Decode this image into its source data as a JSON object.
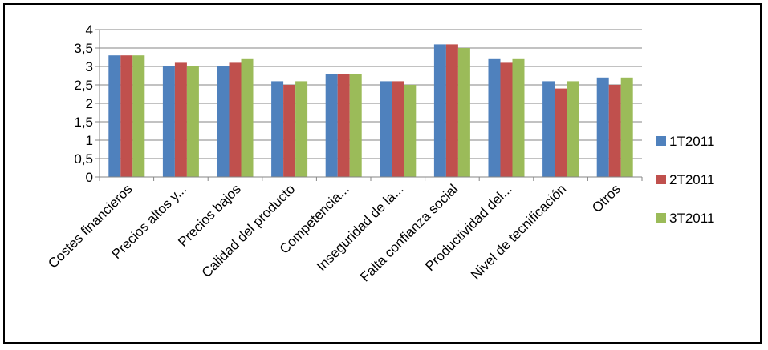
{
  "chart_data": {
    "type": "bar",
    "title": "",
    "xlabel": "",
    "ylabel": "",
    "ylim": [
      0,
      4
    ],
    "y_ticks": [
      "0",
      "0,5",
      "1",
      "1,5",
      "2",
      "2,5",
      "3",
      "3,5",
      "4"
    ],
    "grid": true,
    "legend_position": "right",
    "categories": [
      "Costes financieros",
      "Precios altos y...",
      "Precios bajos",
      "Calidad del producto",
      "Competencia...",
      "Inseguridad de la...",
      "Falta confianza social",
      "Productividad del...",
      "Nivel de tecnificación",
      "Otros"
    ],
    "series": [
      {
        "name": "1T2011",
        "color": "#4f81bd",
        "values": [
          3.3,
          3.0,
          3.0,
          2.6,
          2.8,
          2.6,
          3.6,
          3.2,
          2.6,
          2.7
        ]
      },
      {
        "name": "2T2011",
        "color": "#c0504d",
        "values": [
          3.3,
          3.1,
          3.1,
          2.5,
          2.8,
          2.6,
          3.6,
          3.1,
          2.4,
          2.5
        ]
      },
      {
        "name": "3T2011",
        "color": "#9bbb59",
        "values": [
          3.3,
          3.0,
          3.2,
          2.6,
          2.8,
          2.5,
          3.5,
          3.2,
          2.6,
          2.7
        ]
      }
    ]
  }
}
